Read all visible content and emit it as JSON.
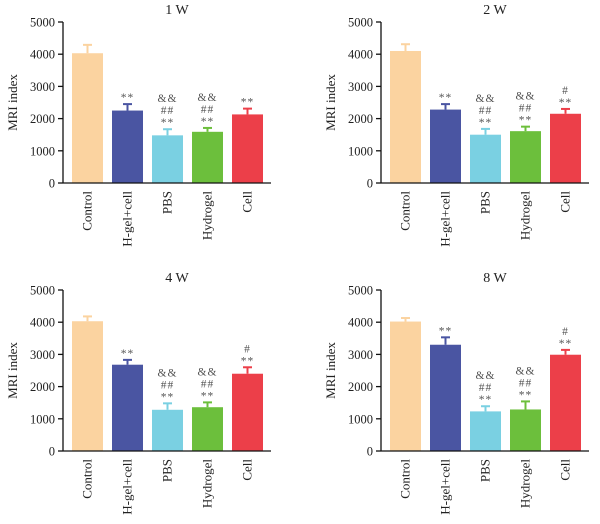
{
  "chart_data": [
    {
      "type": "bar",
      "title": "1 W",
      "ylabel": "MRI index",
      "ylim": [
        0,
        5000
      ],
      "yticks": [
        0,
        1000,
        2000,
        3000,
        4000,
        5000
      ],
      "categories": [
        "Control",
        "H-gel+cell",
        "PBS",
        "Hydrogel",
        "Cell"
      ],
      "values": [
        4030,
        2250,
        1480,
        1590,
        2130
      ],
      "errors": [
        260,
        200,
        190,
        120,
        180
      ],
      "colors": [
        "#fbd3a0",
        "#4a55a2",
        "#7ad0e2",
        "#6cbf3c",
        "#ec3f49"
      ],
      "annotations": [
        [],
        [
          "**"
        ],
        [
          "**",
          "##",
          "&&"
        ],
        [
          "**",
          "##",
          "&&"
        ],
        [
          "**"
        ]
      ]
    },
    {
      "type": "bar",
      "title": "2 W",
      "ylabel": "MRI index",
      "ylim": [
        0,
        5000
      ],
      "yticks": [
        0,
        1000,
        2000,
        3000,
        4000,
        5000
      ],
      "categories": [
        "Control",
        "H-gel+cell",
        "PBS",
        "Hydrogel",
        "Cell"
      ],
      "values": [
        4100,
        2280,
        1500,
        1610,
        2150
      ],
      "errors": [
        210,
        170,
        180,
        140,
        150
      ],
      "colors": [
        "#fbd3a0",
        "#4a55a2",
        "#7ad0e2",
        "#6cbf3c",
        "#ec3f49"
      ],
      "annotations": [
        [],
        [
          "**"
        ],
        [
          "**",
          "##",
          "&&"
        ],
        [
          "**",
          "##",
          "&&"
        ],
        [
          "**",
          "#"
        ]
      ]
    },
    {
      "type": "bar",
      "title": "4 W",
      "ylabel": "MRI index",
      "ylim": [
        0,
        5000
      ],
      "yticks": [
        0,
        1000,
        2000,
        3000,
        4000,
        5000
      ],
      "categories": [
        "Control",
        "H-gel+cell",
        "PBS",
        "Hydrogel",
        "Cell"
      ],
      "values": [
        4030,
        2680,
        1280,
        1360,
        2400
      ],
      "errors": [
        150,
        150,
        200,
        150,
        200
      ],
      "colors": [
        "#fbd3a0",
        "#4a55a2",
        "#7ad0e2",
        "#6cbf3c",
        "#ec3f49"
      ],
      "annotations": [
        [],
        [
          "**"
        ],
        [
          "**",
          "##",
          "&&"
        ],
        [
          "**",
          "##",
          "&&"
        ],
        [
          "**",
          "#"
        ]
      ]
    },
    {
      "type": "bar",
      "title": "8 W",
      "ylabel": "MRI index",
      "ylim": [
        0,
        5000
      ],
      "yticks": [
        0,
        1000,
        2000,
        3000,
        4000,
        5000
      ],
      "categories": [
        "Control",
        "H-gel+cell",
        "PBS",
        "Hydrogel",
        "Cell"
      ],
      "values": [
        4020,
        3300,
        1230,
        1290,
        2990
      ],
      "errors": [
        110,
        230,
        160,
        250,
        150
      ],
      "colors": [
        "#fbd3a0",
        "#4a55a2",
        "#7ad0e2",
        "#6cbf3c",
        "#ec3f49"
      ],
      "annotations": [
        [],
        [
          "**"
        ],
        [
          "**",
          "##",
          "&&"
        ],
        [
          "**",
          "##",
          "&&"
        ],
        [
          "**",
          "#"
        ]
      ]
    }
  ]
}
